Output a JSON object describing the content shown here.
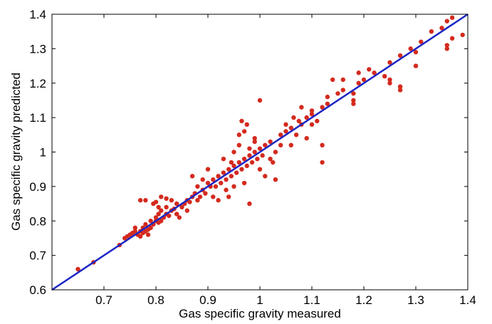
{
  "chart_data": {
    "type": "scatter",
    "title": "",
    "xlabel": "Gas specific gravity measured",
    "ylabel": "Gas specific gravity predicted",
    "xlim": [
      0.6,
      1.4
    ],
    "ylim": [
      0.6,
      1.4
    ],
    "x_ticks": [
      0.7,
      0.8,
      0.9,
      1,
      1.1,
      1.2,
      1.3,
      1.4
    ],
    "x_tick_labels": [
      "0.7",
      "0.8",
      "0.9",
      "1",
      "1.1",
      "1.2",
      "1.3",
      "1.4"
    ],
    "y_ticks": [
      0.6,
      0.7,
      0.8,
      0.9,
      1,
      1.1,
      1.2,
      1.3,
      1.4
    ],
    "y_tick_labels": [
      "0.6",
      "0.7",
      "0.8",
      "0.9",
      "1",
      "1.1",
      "1.2",
      "1.3",
      "1.4"
    ],
    "grid": false,
    "legend": "none",
    "colors": {
      "points": "#d42a1e",
      "fit_line": "#1c25c4",
      "axes": "#000000"
    },
    "series": [
      {
        "type": "scatter",
        "points": [
          [
            0.65,
            0.66
          ],
          [
            0.68,
            0.68
          ],
          [
            0.73,
            0.73
          ],
          [
            0.74,
            0.75
          ],
          [
            0.745,
            0.755
          ],
          [
            0.75,
            0.76
          ],
          [
            0.755,
            0.765
          ],
          [
            0.76,
            0.77
          ],
          [
            0.76,
            0.78
          ],
          [
            0.765,
            0.76
          ],
          [
            0.77,
            0.755
          ],
          [
            0.77,
            0.77
          ],
          [
            0.775,
            0.78
          ],
          [
            0.775,
            0.765
          ],
          [
            0.78,
            0.77
          ],
          [
            0.78,
            0.79
          ],
          [
            0.785,
            0.775
          ],
          [
            0.785,
            0.76
          ],
          [
            0.79,
            0.78
          ],
          [
            0.79,
            0.8
          ],
          [
            0.795,
            0.79
          ],
          [
            0.8,
            0.8
          ],
          [
            0.8,
            0.81
          ],
          [
            0.805,
            0.795
          ],
          [
            0.805,
            0.82
          ],
          [
            0.81,
            0.8
          ],
          [
            0.81,
            0.83
          ],
          [
            0.815,
            0.81
          ],
          [
            0.82,
            0.82
          ],
          [
            0.82,
            0.84
          ],
          [
            0.825,
            0.815
          ],
          [
            0.83,
            0.83
          ],
          [
            0.835,
            0.835
          ],
          [
            0.84,
            0.82
          ],
          [
            0.845,
            0.81
          ],
          [
            0.85,
            0.84
          ],
          [
            0.855,
            0.85
          ],
          [
            0.86,
            0.86
          ],
          [
            0.865,
            0.855
          ],
          [
            0.87,
            0.87
          ],
          [
            0.875,
            0.88
          ],
          [
            0.88,
            0.9
          ],
          [
            0.885,
            0.87
          ],
          [
            0.89,
            0.89
          ],
          [
            0.895,
            0.88
          ],
          [
            0.9,
            0.91
          ],
          [
            0.905,
            0.9
          ],
          [
            0.91,
            0.92
          ],
          [
            0.915,
            0.9
          ],
          [
            0.92,
            0.93
          ],
          [
            0.925,
            0.91
          ],
          [
            0.93,
            0.94
          ],
          [
            0.935,
            0.92
          ],
          [
            0.94,
            0.95
          ],
          [
            0.945,
            0.93
          ],
          [
            0.95,
            0.96
          ],
          [
            0.955,
            0.94
          ],
          [
            0.96,
            0.97
          ],
          [
            0.965,
            0.95
          ],
          [
            0.97,
            0.98
          ],
          [
            0.975,
            0.96
          ],
          [
            0.98,
            0.99
          ],
          [
            0.985,
            0.97
          ],
          [
            0.99,
            1.0
          ],
          [
            0.995,
            0.98
          ],
          [
            1.0,
            1.01
          ],
          [
            1.005,
            0.99
          ],
          [
            1.01,
            1.02
          ],
          [
            1.02,
            1.03
          ],
          [
            1.03,
            1.0
          ],
          [
            1.04,
            1.05
          ],
          [
            1.05,
            1.06
          ],
          [
            1.06,
            1.07
          ],
          [
            1.07,
            1.05
          ],
          [
            1.08,
            1.08
          ],
          [
            1.09,
            1.1
          ],
          [
            1.1,
            1.12
          ],
          [
            1.11,
            1.09
          ],
          [
            1.12,
            1.13
          ],
          [
            1.13,
            1.14
          ],
          [
            1.15,
            1.17
          ],
          [
            1.16,
            1.18
          ],
          [
            1.18,
            1.17
          ],
          [
            1.19,
            1.2
          ],
          [
            1.2,
            1.21
          ],
          [
            1.22,
            1.23
          ],
          [
            1.24,
            1.22
          ],
          [
            1.25,
            1.26
          ],
          [
            1.27,
            1.28
          ],
          [
            1.29,
            1.3
          ],
          [
            1.3,
            1.29
          ],
          [
            1.31,
            1.32
          ],
          [
            1.33,
            1.35
          ],
          [
            1.35,
            1.36
          ],
          [
            1.36,
            1.38
          ],
          [
            1.37,
            1.39
          ],
          [
            0.77,
            0.86
          ],
          [
            0.78,
            0.86
          ],
          [
            0.795,
            0.85
          ],
          [
            0.8,
            0.855
          ],
          [
            0.805,
            0.84
          ],
          [
            0.81,
            0.87
          ],
          [
            0.82,
            0.865
          ],
          [
            0.83,
            0.86
          ],
          [
            0.84,
            0.85
          ],
          [
            0.87,
            0.93
          ],
          [
            0.89,
            0.92
          ],
          [
            0.9,
            0.95
          ],
          [
            0.93,
            0.98
          ],
          [
            0.95,
            1.0
          ],
          [
            0.96,
            1.05
          ],
          [
            0.965,
            1.09
          ],
          [
            0.97,
            1.06
          ],
          [
            0.975,
            1.08
          ],
          [
            0.99,
            1.04
          ],
          [
            1.0,
            1.15
          ],
          [
            1.02,
            0.98
          ],
          [
            1.025,
            0.97
          ],
          [
            1.04,
            1.02
          ],
          [
            1.06,
            1.02
          ],
          [
            1.065,
            1.1
          ],
          [
            1.075,
            1.09
          ],
          [
            1.08,
            1.13
          ],
          [
            1.09,
            1.04
          ],
          [
            1.1,
            1.08
          ],
          [
            1.12,
            1.02
          ],
          [
            1.12,
            0.97
          ],
          [
            1.14,
            1.21
          ],
          [
            1.16,
            1.21
          ],
          [
            1.18,
            1.14
          ],
          [
            1.18,
            1.15
          ],
          [
            1.19,
            1.23
          ],
          [
            1.21,
            1.24
          ],
          [
            1.25,
            1.2
          ],
          [
            1.25,
            1.21
          ],
          [
            1.27,
            1.18
          ],
          [
            1.27,
            1.19
          ],
          [
            1.3,
            1.25
          ],
          [
            1.36,
            1.3
          ],
          [
            1.36,
            1.31
          ],
          [
            1.37,
            1.33
          ],
          [
            1.39,
            1.34
          ],
          [
            0.92,
            0.86
          ],
          [
            0.94,
            0.87
          ],
          [
            0.98,
            0.85
          ],
          [
            0.97,
            0.91
          ],
          [
            0.935,
            0.89
          ],
          [
            0.95,
            0.9
          ],
          [
            1.0,
            0.95
          ],
          [
            1.01,
            0.93
          ],
          [
            1.03,
            0.92
          ],
          [
            0.86,
            0.83
          ],
          [
            0.88,
            0.86
          ],
          [
            0.91,
            0.87
          ],
          [
            0.945,
            0.97
          ],
          [
            0.96,
            1.02
          ],
          [
            0.98,
            1.01
          ],
          [
            0.99,
            1.03
          ],
          [
            1.05,
            1.08
          ],
          [
            1.1,
            1.11
          ],
          [
            1.13,
            1.16
          ]
        ]
      },
      {
        "type": "line",
        "x": [
          0.6,
          1.4
        ],
        "y": [
          0.6,
          1.4
        ]
      }
    ]
  }
}
